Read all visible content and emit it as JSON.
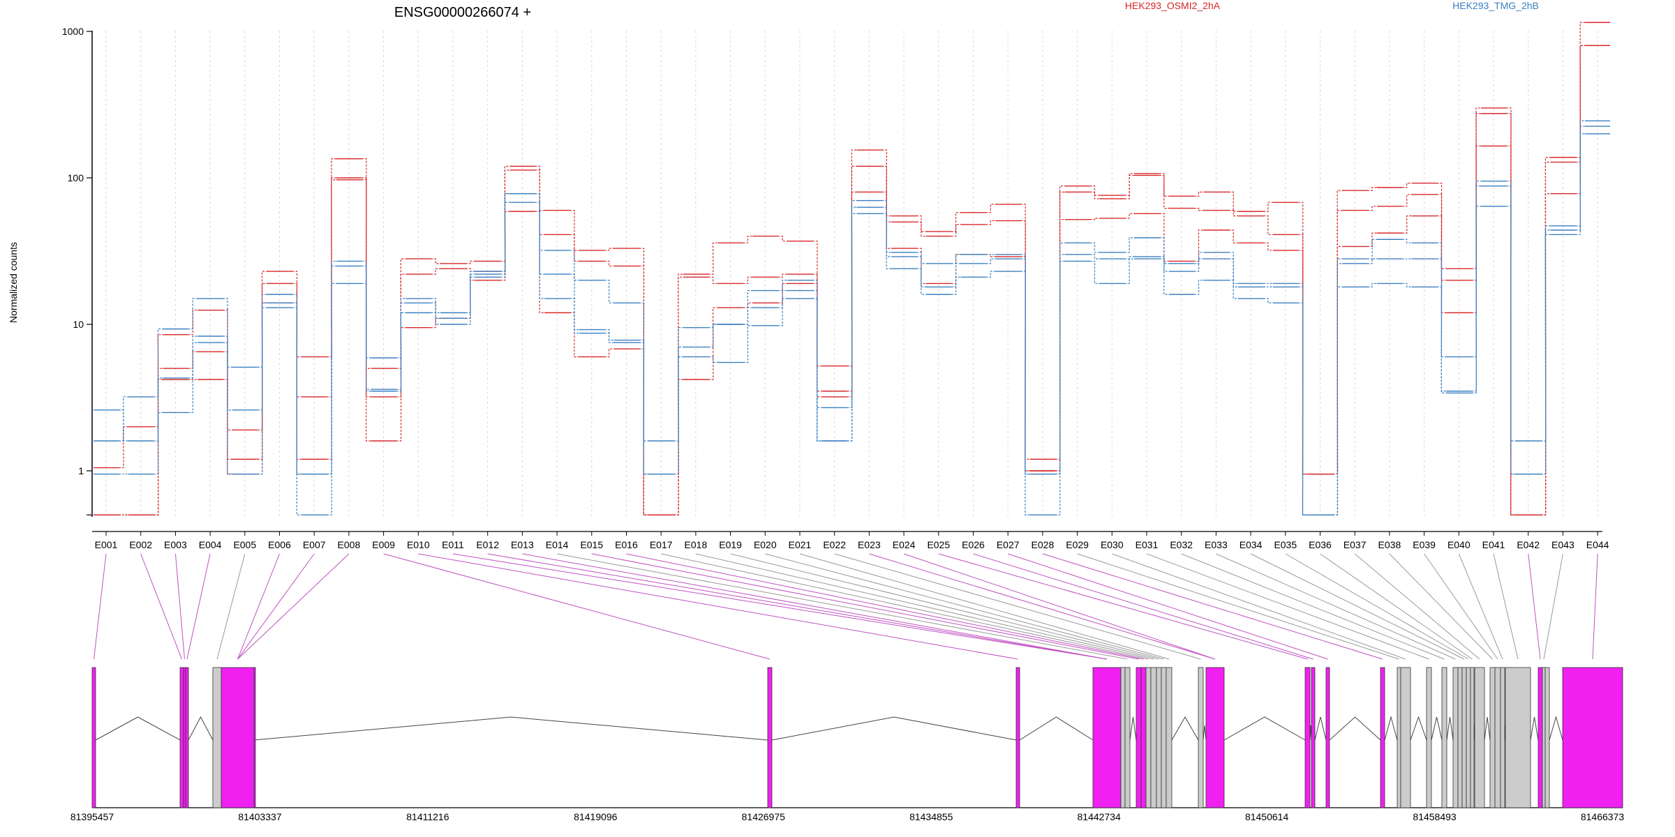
{
  "chart_data": {
    "type": "line",
    "title": "ENSG00000266074 +",
    "ylabel": "Normalized counts",
    "yscale": "log",
    "ylim": [
      0.5,
      1500
    ],
    "yticks": [
      1,
      10,
      100,
      1000
    ],
    "ytick_labels": [
      "1",
      "10",
      "100",
      "1000"
    ],
    "legend": [
      {
        "name": "HEK293_OSMI2_2hA",
        "color": "#d62728"
      },
      {
        "name": "HEK293_TMG_2hB",
        "color": "#3a7fc1"
      }
    ],
    "categories": [
      "E001",
      "E002",
      "E003",
      "E004",
      "E005",
      "E006",
      "E007",
      "E008",
      "E009",
      "E010",
      "E011",
      "E012",
      "E013",
      "E014",
      "E015",
      "E016",
      "E017",
      "E018",
      "E019",
      "E020",
      "E021",
      "E022",
      "E023",
      "E024",
      "E025",
      "E026",
      "E027",
      "E028",
      "E029",
      "E030",
      "E031",
      "E032",
      "E033",
      "E034",
      "E035",
      "E036",
      "E037",
      "E038",
      "E039",
      "E040",
      "E041",
      "E042",
      "E043",
      "E044"
    ],
    "series": [
      {
        "group": "HEK293_OSMI2_2hA",
        "color": "#d62728",
        "values": [
          1.05,
          2.0,
          8.5,
          12.5,
          1.9,
          23,
          6.0,
          135,
          5.0,
          28,
          26,
          27,
          120,
          60,
          32,
          33,
          0.5,
          22,
          36,
          40,
          37,
          5.2,
          155,
          55,
          43,
          58,
          66,
          1.2,
          88,
          76,
          107,
          75,
          80,
          59,
          68,
          0.95,
          82,
          86,
          92,
          24,
          300,
          0.5,
          138,
          1150
        ]
      },
      {
        "group": "HEK293_OSMI2_2hA",
        "color": "#d62728",
        "values": [
          0.5,
          0.5,
          5.0,
          6.5,
          1.2,
          19,
          3.2,
          100,
          3.2,
          22,
          24,
          23,
          113,
          41,
          27,
          25,
          0.5,
          21,
          19,
          21,
          22,
          3.5,
          120,
          50,
          40,
          48,
          51,
          1.0,
          80,
          72,
          104,
          62,
          60,
          55,
          41,
          0.95,
          60,
          64,
          77,
          20,
          275,
          0.5,
          128,
          800
        ]
      },
      {
        "group": "HEK293_OSMI2_2hA",
        "color": "#d62728",
        "values": [
          0.5,
          0.5,
          4.2,
          4.2,
          0.95,
          14,
          1.2,
          97,
          1.6,
          9.5,
          11,
          20,
          59,
          12,
          6.0,
          6.8,
          0.5,
          4.2,
          13,
          14,
          19,
          3.2,
          80,
          33,
          19,
          30,
          29,
          1.0,
          52,
          53,
          57,
          27,
          44,
          36,
          32,
          0.95,
          34,
          42,
          55,
          12,
          165,
          0.5,
          78,
          800
        ]
      },
      {
        "group": "HEK293_TMG_2hB",
        "color": "#3a7fc1",
        "values": [
          1.6,
          3.2,
          9.3,
          15,
          5.1,
          16,
          0.95,
          27,
          5.9,
          15,
          12,
          23,
          78,
          32,
          20,
          14,
          1.6,
          9.5,
          10,
          17,
          20,
          2.7,
          70,
          31,
          26,
          30,
          30,
          0.95,
          36,
          31,
          39,
          26,
          31,
          19,
          19,
          0.5,
          28,
          38,
          36,
          6.0,
          95,
          1.6,
          47,
          245
        ]
      },
      {
        "group": "HEK293_TMG_2hB",
        "color": "#3a7fc1",
        "values": [
          2.6,
          1.6,
          4.3,
          8.3,
          2.6,
          14,
          0.95,
          25,
          3.6,
          14,
          11,
          22,
          68,
          22,
          9.2,
          7.8,
          0.95,
          7.0,
          10,
          13,
          17,
          1.6,
          63,
          29,
          18,
          26,
          28,
          0.95,
          30,
          28,
          29,
          23,
          28,
          18,
          18,
          0.5,
          26,
          28,
          28,
          3.5,
          88,
          0.95,
          44,
          225
        ]
      },
      {
        "group": "HEK293_TMG_2hB",
        "color": "#3a7fc1",
        "values": [
          0.95,
          0.95,
          2.5,
          7.5,
          0.95,
          13,
          0.5,
          19,
          3.5,
          12,
          10,
          21,
          78,
          15,
          8.7,
          7.5,
          0.95,
          6.0,
          5.5,
          9.8,
          15,
          1.6,
          57,
          24,
          16,
          21,
          23,
          0.5,
          27,
          19,
          28,
          16,
          20,
          15,
          14,
          0.5,
          18,
          19,
          18,
          3.4,
          64,
          0.95,
          41,
          200
        ]
      }
    ],
    "gene_model": {
      "xlabels": [
        "81395457",
        "81403337",
        "81411216",
        "81419096",
        "81426975",
        "81434855",
        "81442734",
        "81450614",
        "81458493",
        "81466373"
      ]
    }
  }
}
